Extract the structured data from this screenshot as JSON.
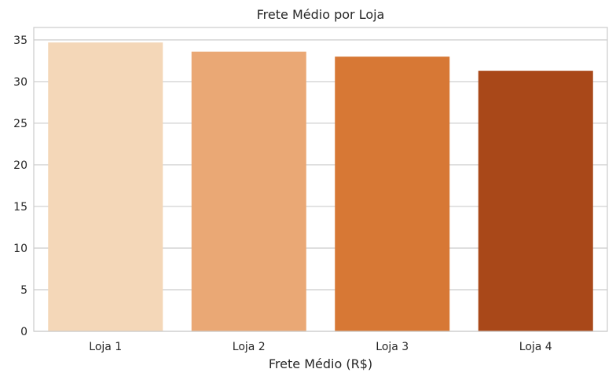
{
  "chart_data": {
    "type": "bar",
    "title": "Frete Médio por Loja",
    "xlabel": "Frete Médio (R$)",
    "ylabel": "",
    "categories": [
      "Loja 1",
      "Loja 2",
      "Loja 3",
      "Loja 4"
    ],
    "values": [
      34.7,
      33.6,
      33.0,
      31.3
    ],
    "colors": [
      "#f4d7b8",
      "#eaa875",
      "#d77835",
      "#a94819"
    ],
    "ylim": [
      0,
      36.5
    ],
    "yticks": [
      0,
      5,
      10,
      15,
      20,
      25,
      30,
      35
    ],
    "grid": true,
    "legend": "none"
  }
}
